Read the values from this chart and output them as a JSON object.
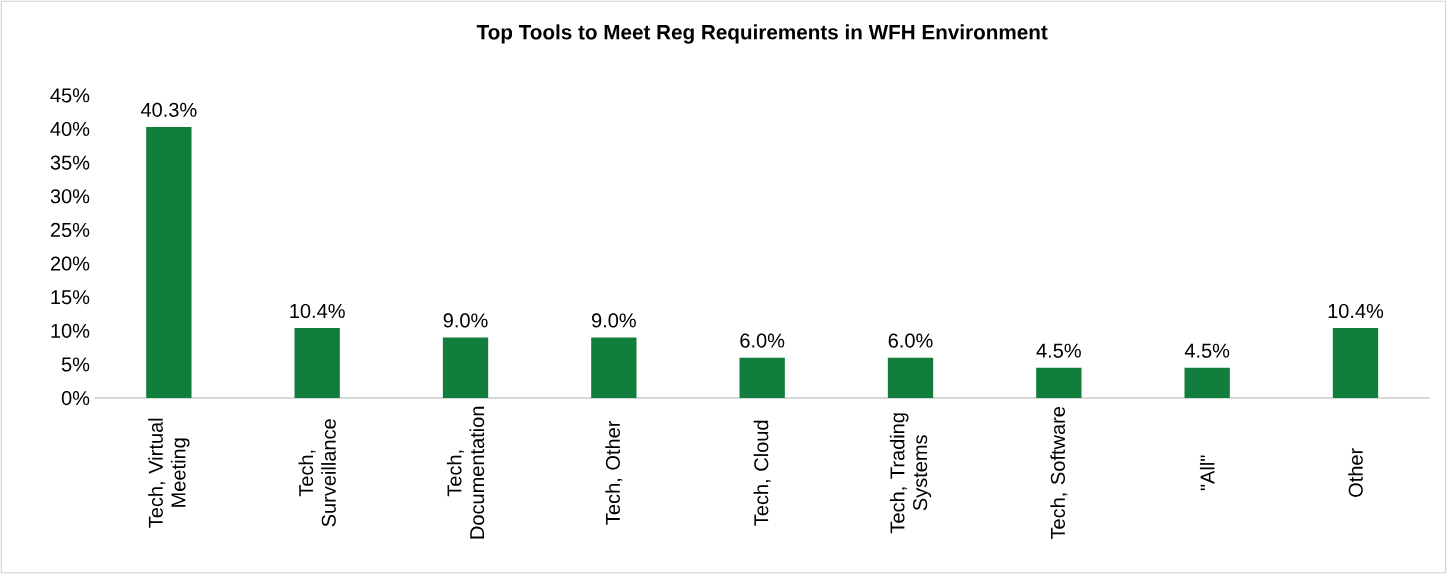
{
  "chart_data": {
    "type": "bar",
    "title": "Top Tools to Meet Reg Requirements in WFH Environment",
    "categories": [
      "Tech, Virtual Meeting",
      "Tech, Surveillance",
      "Tech, Documentation",
      "Tech, Other",
      "Tech, Cloud",
      "Tech, Trading Systems",
      "Tech, Software",
      "\"All\"",
      "Other"
    ],
    "values": [
      40.3,
      10.4,
      9.0,
      9.0,
      6.0,
      6.0,
      4.5,
      4.5,
      10.4
    ],
    "value_labels": [
      "40.3%",
      "10.4%",
      "9.0%",
      "9.0%",
      "6.0%",
      "6.0%",
      "4.5%",
      "4.5%",
      "10.4%"
    ],
    "color": "#127e3e",
    "ylim": [
      0,
      45
    ],
    "yticks": [
      {
        "value": 0,
        "label": "0%"
      },
      {
        "value": 5,
        "label": "5%"
      },
      {
        "value": 10,
        "label": "10%"
      },
      {
        "value": 15,
        "label": "15%"
      },
      {
        "value": 20,
        "label": "20%"
      },
      {
        "value": 25,
        "label": "25%"
      },
      {
        "value": 30,
        "label": "30%"
      },
      {
        "value": 35,
        "label": "35%"
      },
      {
        "value": 40,
        "label": "40%"
      },
      {
        "value": 45,
        "label": "45%"
      }
    ]
  }
}
